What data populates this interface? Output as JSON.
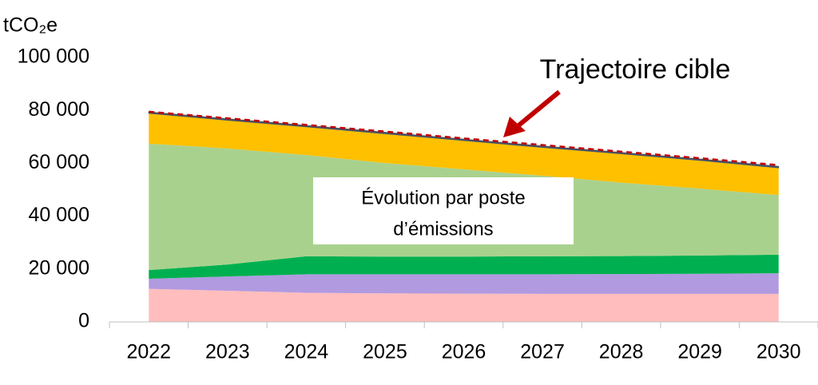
{
  "chart_data": {
    "type": "area",
    "y_label": "tCO₂e",
    "categories": [
      "2022",
      "2023",
      "2024",
      "2025",
      "2026",
      "2027",
      "2028",
      "2029",
      "2030"
    ],
    "ylim": [
      0,
      100000
    ],
    "yticks": [
      0,
      {
        "value": 20000,
        "label": "20 000"
      },
      {
        "value": 40000,
        "label": "40 000"
      },
      {
        "value": 60000,
        "label": "60 000"
      },
      {
        "value": 80000,
        "label": "80 000"
      },
      {
        "value": 100000,
        "label": "100 000"
      }
    ],
    "stacked": true,
    "series": [
      {
        "color": "#ffbdbd",
        "values": [
          12500,
          11800,
          11000,
          10800,
          10700,
          10600,
          10600,
          10600,
          10600
        ]
      },
      {
        "color": "#b19ae0",
        "values": [
          3800,
          5400,
          7000,
          7200,
          7300,
          7400,
          7500,
          7600,
          7800
        ]
      },
      {
        "color": "#00b050",
        "values": [
          3300,
          4500,
          6800,
          6700,
          6700,
          6800,
          6800,
          6900,
          7000
        ]
      },
      {
        "color": "#a9d18e",
        "values": [
          47800,
          43900,
          38300,
          35400,
          33000,
          30500,
          27800,
          25300,
          22600
        ]
      },
      {
        "color": "#ffc000",
        "values": [
          11500,
          10700,
          10700,
          11100,
          10900,
          10700,
          10900,
          10700,
          10300
        ]
      },
      {
        "color": "#44546a",
        "values": [
          500,
          500,
          500,
          500,
          500,
          500,
          500,
          500,
          500
        ]
      },
      {
        "color": "#c00000",
        "kind": "dashed-line",
        "values": [
          79500,
          77000,
          74500,
          72000,
          69400,
          66900,
          64400,
          61900,
          59300
        ]
      }
    ],
    "annotations": [
      "Trajectoire cible",
      "Évolution par poste",
      "d’émissions"
    ]
  }
}
